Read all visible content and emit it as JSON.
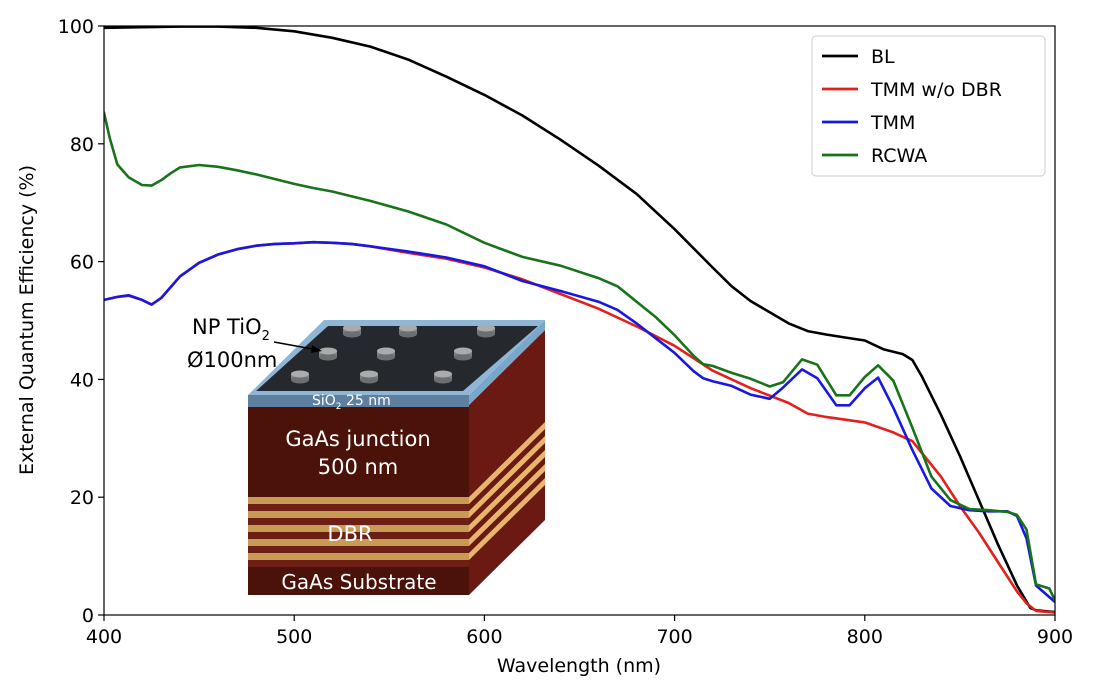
{
  "chart_data": {
    "type": "line",
    "title": "",
    "xlabel": "Wavelength (nm)",
    "ylabel": "External Quantum Efficiency (%)",
    "xlim": [
      400,
      900
    ],
    "ylim": [
      0,
      100
    ],
    "xticks": [
      400,
      500,
      600,
      700,
      800,
      900
    ],
    "yticks": [
      0,
      20,
      40,
      60,
      80,
      100
    ],
    "grid": false,
    "legend_position": "top-right",
    "series": [
      {
        "name": "BL",
        "color": "#000000",
        "x": [
          400,
          420,
          440,
          460,
          480,
          500,
          520,
          540,
          560,
          580,
          600,
          620,
          640,
          660,
          680,
          700,
          720,
          730,
          740,
          760,
          770,
          780,
          790,
          800,
          810,
          820,
          825,
          830,
          840,
          850,
          860,
          870,
          880,
          887,
          890,
          900
        ],
        "y": [
          99.7,
          99.8,
          99.9,
          99.9,
          99.7,
          99.1,
          98.0,
          96.5,
          94.3,
          91.4,
          88.3,
          84.8,
          80.7,
          76.3,
          71.5,
          65.5,
          59.0,
          55.8,
          53.3,
          49.5,
          48.2,
          47.6,
          47.1,
          46.6,
          45.1,
          44.3,
          43.3,
          40.5,
          34.0,
          27.0,
          19.5,
          12.0,
          5.0,
          1.2,
          0.8,
          0.5
        ]
      },
      {
        "name": "TMM w/o DBR",
        "color": "#e3201c",
        "x": [
          400,
          407,
          413,
          420,
          425,
          430,
          440,
          450,
          460,
          470,
          480,
          490,
          500,
          510,
          520,
          530,
          540,
          560,
          580,
          600,
          620,
          640,
          660,
          680,
          700,
          720,
          740,
          760,
          770,
          780,
          800,
          815,
          825,
          830,
          840,
          850,
          860,
          870,
          880,
          885,
          890,
          900
        ],
        "y": [
          53.5,
          54.0,
          54.2,
          53.5,
          52.7,
          53.8,
          57.5,
          59.8,
          61.2,
          62.1,
          62.7,
          63.0,
          63.1,
          63.3,
          63.2,
          63.0,
          62.6,
          61.5,
          60.5,
          59.0,
          57.0,
          54.5,
          52.0,
          49.0,
          45.7,
          41.5,
          38.5,
          36.0,
          34.2,
          33.6,
          32.7,
          31.0,
          29.5,
          27.5,
          23.5,
          18.5,
          14.0,
          9.0,
          4.0,
          2.0,
          0.7,
          0.4
        ]
      },
      {
        "name": "TMM",
        "color": "#1818e0",
        "x": [
          400,
          407,
          413,
          420,
          425,
          430,
          440,
          450,
          460,
          470,
          480,
          490,
          500,
          510,
          520,
          530,
          540,
          560,
          580,
          600,
          620,
          640,
          660,
          670,
          680,
          690,
          700,
          710,
          715,
          720,
          730,
          740,
          750,
          757,
          767,
          775,
          785,
          792,
          800,
          807,
          815,
          825,
          835,
          845,
          855,
          865,
          875,
          880,
          885,
          890,
          900
        ],
        "y": [
          53.5,
          54.0,
          54.3,
          53.5,
          52.7,
          53.8,
          57.5,
          59.8,
          61.2,
          62.1,
          62.7,
          63.0,
          63.1,
          63.3,
          63.2,
          63.0,
          62.6,
          61.7,
          60.7,
          59.2,
          56.7,
          55.0,
          53.2,
          51.8,
          49.5,
          47.0,
          44.5,
          41.4,
          40.2,
          39.7,
          38.9,
          37.4,
          36.7,
          38.6,
          41.7,
          40.2,
          35.6,
          35.6,
          38.5,
          40.3,
          35.2,
          28.0,
          21.5,
          18.5,
          17.8,
          17.6,
          17.6,
          16.8,
          13.0,
          5.0,
          2.2
        ]
      },
      {
        "name": "RCWA",
        "color": "#19731a",
        "x": [
          400,
          403,
          407,
          413,
          420,
          425,
          430,
          435,
          440,
          450,
          460,
          470,
          480,
          490,
          500,
          510,
          520,
          530,
          540,
          560,
          580,
          600,
          620,
          640,
          660,
          670,
          680,
          690,
          700,
          710,
          715,
          720,
          730,
          740,
          750,
          757,
          767,
          775,
          785,
          792,
          800,
          807,
          815,
          825,
          835,
          845,
          855,
          865,
          875,
          880,
          885,
          890,
          897,
          900
        ],
        "y": [
          85.3,
          81.0,
          76.5,
          74.3,
          73.0,
          72.9,
          73.8,
          75.0,
          76.0,
          76.4,
          76.1,
          75.5,
          74.8,
          74.0,
          73.2,
          72.5,
          71.9,
          71.1,
          70.3,
          68.5,
          66.3,
          63.2,
          60.8,
          59.3,
          57.2,
          55.8,
          53.2,
          50.6,
          47.5,
          44.0,
          42.6,
          42.3,
          41.1,
          40.1,
          38.8,
          39.5,
          43.4,
          42.5,
          37.3,
          37.3,
          40.4,
          42.4,
          39.8,
          31.8,
          23.5,
          19.5,
          18.0,
          17.8,
          17.5,
          17.0,
          14.5,
          5.2,
          4.5,
          2.5
        ]
      }
    ],
    "inset": {
      "label_np": "NP TiO",
      "label_np_sub": "2",
      "label_diameter": "Ø100nm",
      "label_sio2": "SiO",
      "label_sio2_sub": "2",
      "label_sio2_rest": " 25 nm",
      "label_junction_1": "GaAs junction",
      "label_junction_2": "500 nm",
      "label_dbr": "DBR",
      "label_substrate": "GaAs Substrate"
    }
  }
}
